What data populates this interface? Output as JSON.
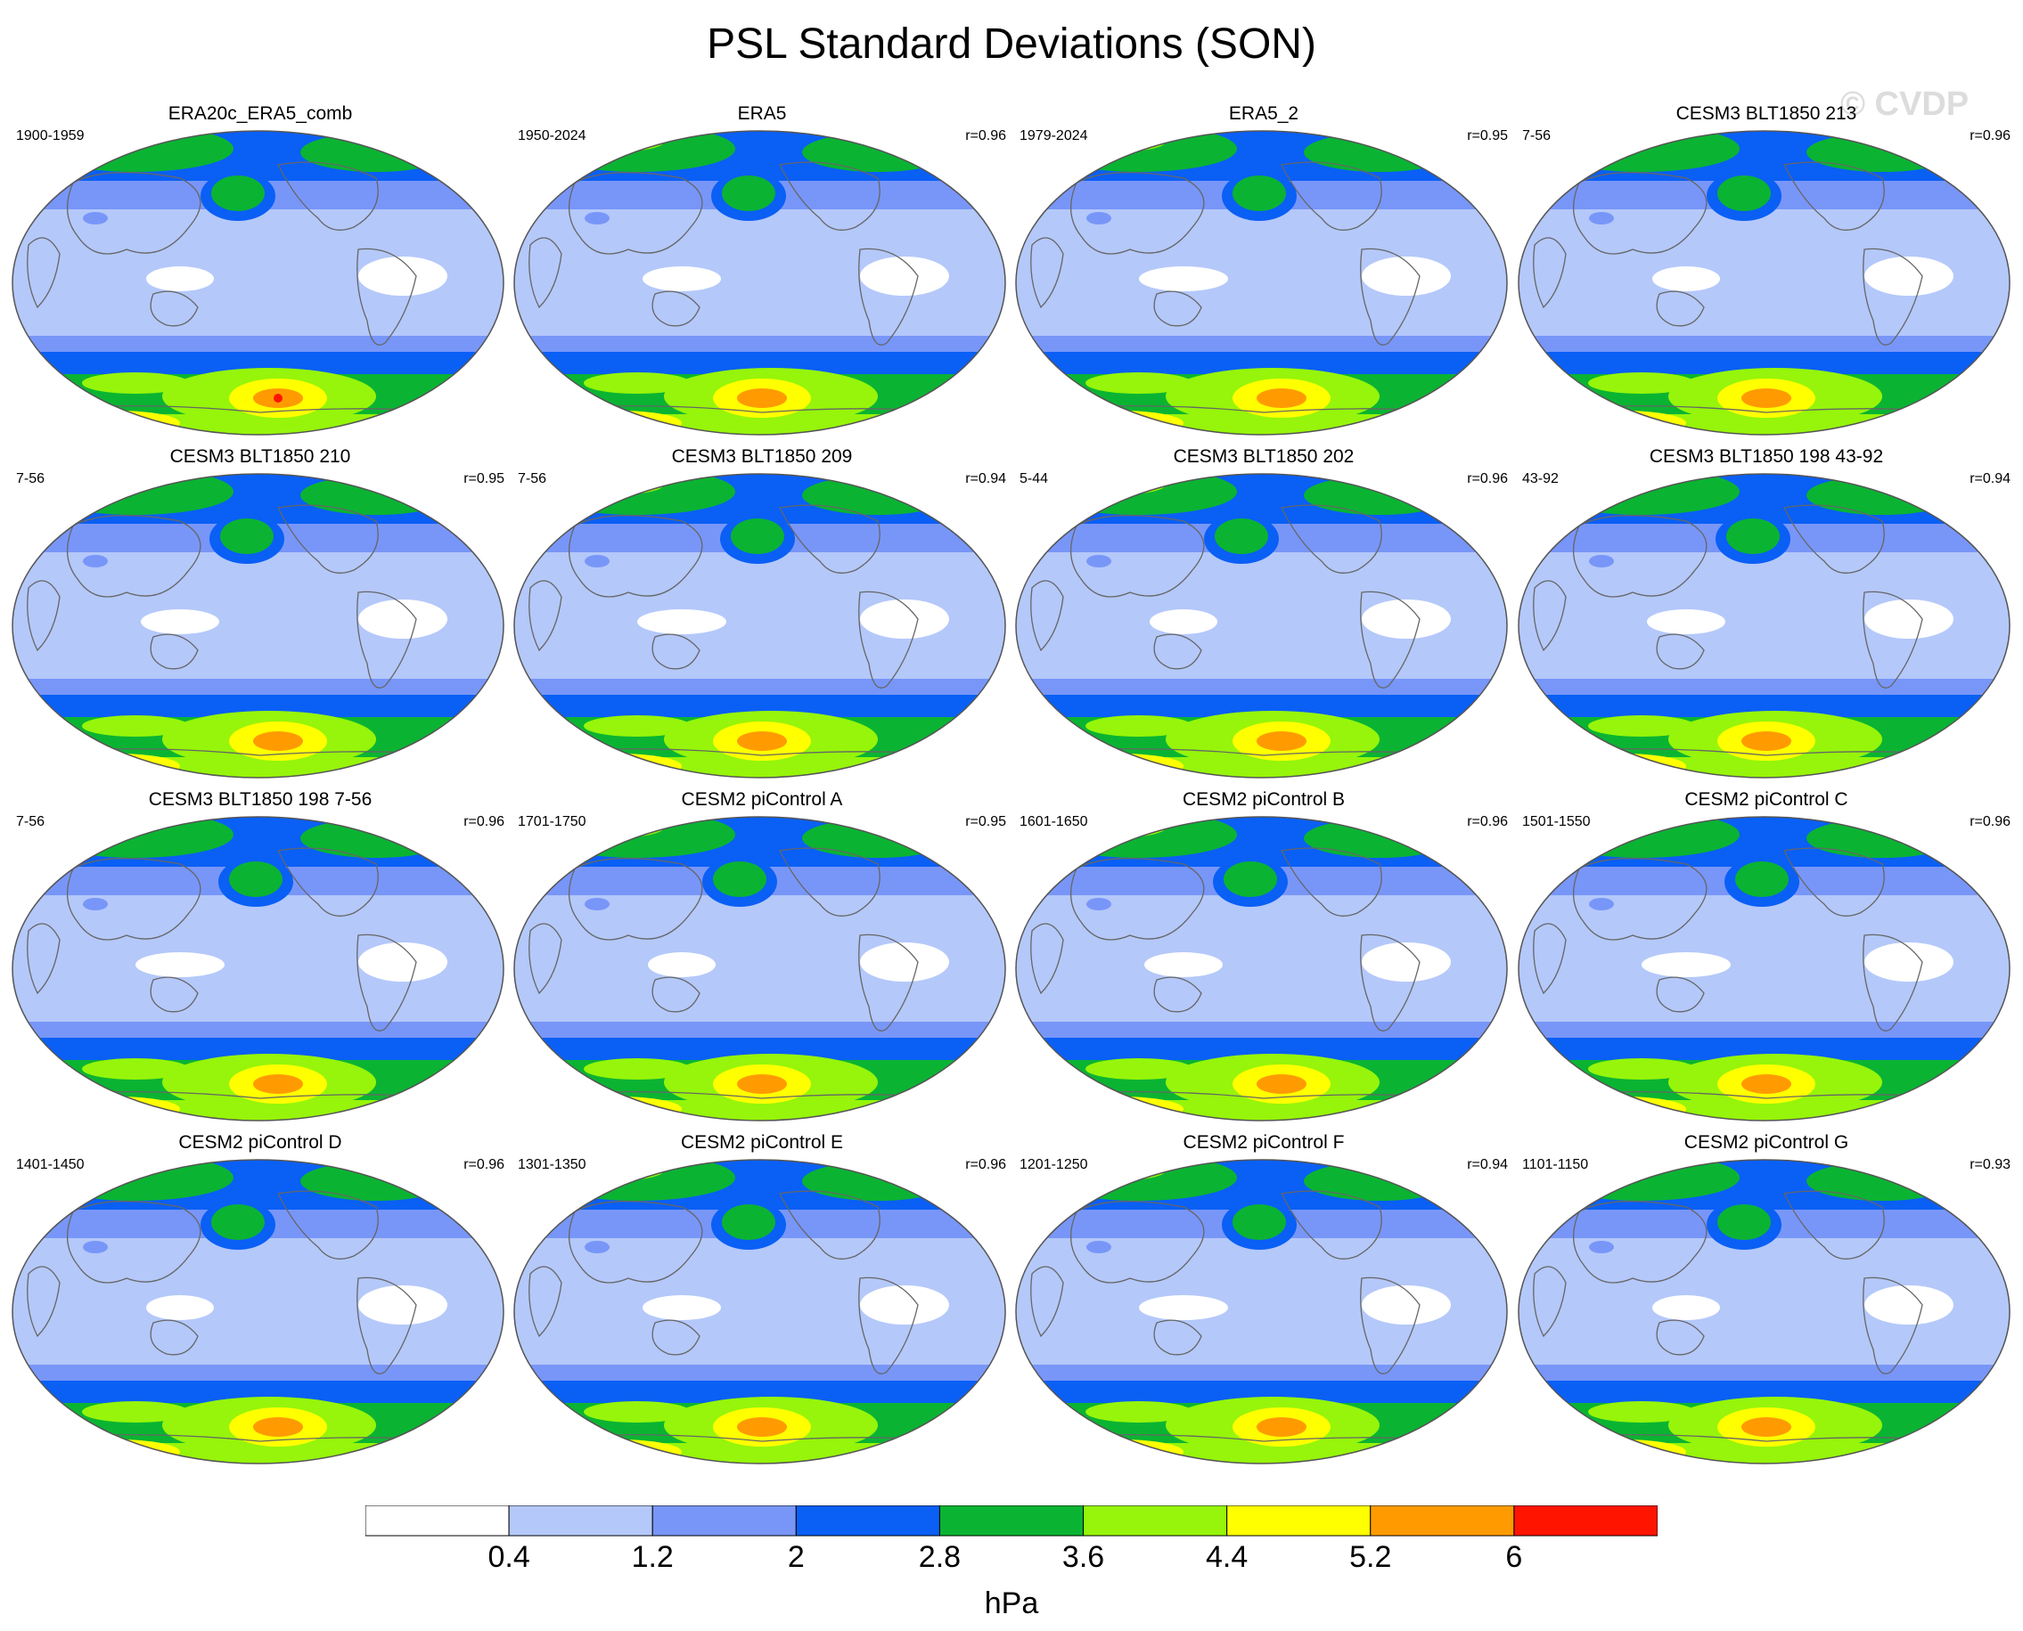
{
  "title": "PSL Standard Deviations (SON)",
  "watermark": "© CVDP",
  "colorbar": {
    "colors": [
      "#ffffff",
      "#b4c8fa",
      "#7896f8",
      "#0a5ff5",
      "#0ab432",
      "#96f50a",
      "#ffff00",
      "#ff9b00",
      "#ff1400"
    ],
    "ticks": [
      "0.4",
      "1.2",
      "2",
      "2.8",
      "3.6",
      "4.4",
      "5.2",
      "6"
    ],
    "units": "hPa"
  },
  "panels": [
    {
      "title": "ERA20c_ERA5_comb",
      "years": "1900-1959",
      "r": ""
    },
    {
      "title": "ERA5",
      "years": "1950-2024",
      "r": "r=0.96"
    },
    {
      "title": "ERA5_2",
      "years": "1979-2024",
      "r": "r=0.95"
    },
    {
      "title": "CESM3 BLT1850 213",
      "years": "7-56",
      "r": "r=0.96"
    },
    {
      "title": "CESM3 BLT1850 210",
      "years": "7-56",
      "r": "r=0.95"
    },
    {
      "title": "CESM3 BLT1850 209",
      "years": "7-56",
      "r": "r=0.94"
    },
    {
      "title": "CESM3 BLT1850 202",
      "years": "5-44",
      "r": "r=0.96"
    },
    {
      "title": "CESM3 BLT1850 198 43-92",
      "years": "43-92",
      "r": "r=0.94"
    },
    {
      "title": "CESM3 BLT1850 198 7-56",
      "years": "7-56",
      "r": "r=0.96"
    },
    {
      "title": "CESM2 piControl A",
      "years": "1701-1750",
      "r": "r=0.95"
    },
    {
      "title": "CESM2 piControl B",
      "years": "1601-1650",
      "r": "r=0.96"
    },
    {
      "title": "CESM2 piControl C",
      "years": "1501-1550",
      "r": "r=0.96"
    },
    {
      "title": "CESM2 piControl D",
      "years": "1401-1450",
      "r": "r=0.96"
    },
    {
      "title": "CESM2 piControl E",
      "years": "1301-1350",
      "r": "r=0.96"
    },
    {
      "title": "CESM2 piControl F",
      "years": "1201-1250",
      "r": "r=0.94"
    },
    {
      "title": "CESM2 piControl G",
      "years": "1101-1150",
      "r": "r=0.93"
    }
  ]
}
